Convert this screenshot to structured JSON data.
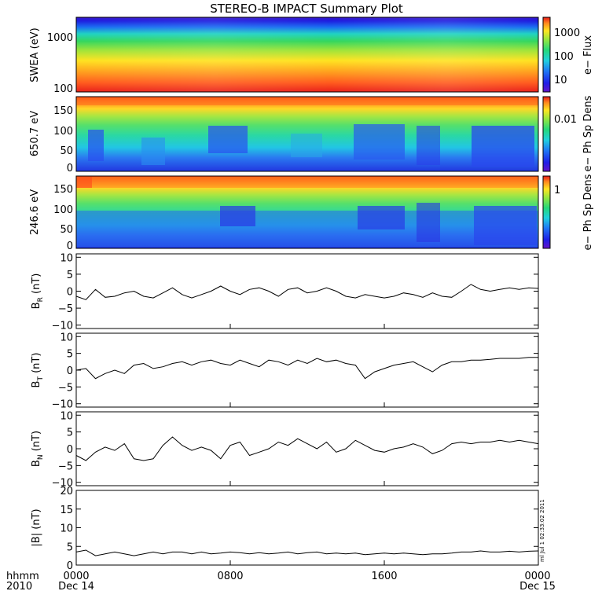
{
  "title": "STEREO-B IMPACT Summary Plot",
  "stamp": "ml Jul 1 02:33:02 2011",
  "colors": {
    "line": "#000000",
    "axis": "#000000",
    "background": "#ffffff"
  },
  "chart_data": [
    {
      "type": "heatmap",
      "ylabel": "SWEA (eV)",
      "yscale": "log",
      "ylim": [
        90,
        2000
      ],
      "yticks": [
        "1000",
        "100"
      ],
      "colorbar": {
        "label": "e− Flux",
        "scale": "log",
        "ticks": [
          "1000",
          "100",
          "10"
        ]
      }
    },
    {
      "type": "heatmap",
      "ylabel": "650.7 eV",
      "ylim": [
        0,
        180
      ],
      "yticks": [
        "150",
        "100",
        "50",
        "0"
      ],
      "colorbar": {
        "label": "e− Ph Sp Dens",
        "scale": "log",
        "ticks": [
          "0.01"
        ]
      }
    },
    {
      "type": "heatmap",
      "ylabel": "246.6 eV",
      "ylim": [
        0,
        180
      ],
      "yticks": [
        "150",
        "100",
        "50",
        "0"
      ],
      "colorbar": {
        "label": "e− Ph Sp Dens",
        "scale": "log",
        "ticks": [
          "1"
        ]
      }
    },
    {
      "type": "line",
      "ylabel": "B",
      "ylabel_sub": "R",
      "ylabel_unit": "(nT)",
      "ylim": [
        -11,
        11
      ],
      "yticks": [
        "10",
        "5",
        "0",
        "−5",
        "−10"
      ],
      "x": [
        0,
        0.5,
        1,
        1.5,
        2,
        2.5,
        3,
        3.5,
        4,
        4.5,
        5,
        5.5,
        6,
        6.5,
        7,
        7.5,
        8,
        8.5,
        9,
        9.5,
        10,
        10.5,
        11,
        11.5,
        12,
        12.5,
        13,
        13.5,
        14,
        14.5,
        15,
        15.5,
        16,
        16.5,
        17,
        17.5,
        18,
        18.5,
        19,
        19.5,
        20,
        20.5,
        21,
        21.5,
        22,
        22.5,
        23,
        23.5,
        24
      ],
      "y": [
        -1.5,
        -2.5,
        0.5,
        -1.8,
        -1.5,
        -0.5,
        0,
        -1.5,
        -2,
        -0.5,
        1,
        -1,
        -2,
        -1,
        0,
        1.5,
        0,
        -1,
        0.5,
        1,
        0,
        -1.5,
        0.5,
        1,
        -0.5,
        0,
        1,
        0,
        -1.5,
        -2,
        -1,
        -1.5,
        -2,
        -1.5,
        -0.5,
        -1,
        -1.8,
        -0.5,
        -1.5,
        -1.8,
        0,
        2,
        0.5,
        0,
        0.5,
        1,
        0.5,
        1,
        0.8
      ]
    },
    {
      "type": "line",
      "ylabel": "B",
      "ylabel_sub": "T",
      "ylabel_unit": "(nT)",
      "ylim": [
        -11,
        11
      ],
      "yticks": [
        "10",
        "5",
        "0",
        "−5",
        "−10"
      ],
      "x": [
        0,
        0.5,
        1,
        1.5,
        2,
        2.5,
        3,
        3.5,
        4,
        4.5,
        5,
        5.5,
        6,
        6.5,
        7,
        7.5,
        8,
        8.5,
        9,
        9.5,
        10,
        10.5,
        11,
        11.5,
        12,
        12.5,
        13,
        13.5,
        14,
        14.5,
        15,
        15.5,
        16,
        16.5,
        17,
        17.5,
        18,
        18.5,
        19,
        19.5,
        20,
        20.5,
        21,
        21.5,
        22,
        22.5,
        23,
        23.5,
        24
      ],
      "y": [
        0,
        0.5,
        -2.5,
        -1,
        0,
        -1,
        1.5,
        2,
        0.5,
        1,
        2,
        2.5,
        1.5,
        2.5,
        3,
        2,
        1.5,
        3,
        2,
        1,
        3,
        2.5,
        1.5,
        3,
        2,
        3.5,
        2.5,
        3,
        2,
        1.5,
        -2.5,
        -0.5,
        0.5,
        1.5,
        2,
        2.5,
        1,
        -0.5,
        1.5,
        2.5,
        2.5,
        3,
        3,
        3.2,
        3.5,
        3.5,
        3.5,
        3.8,
        3.8
      ]
    },
    {
      "type": "line",
      "ylabel": "B",
      "ylabel_sub": "N",
      "ylabel_unit": "(nT)",
      "ylim": [
        -11,
        11
      ],
      "yticks": [
        "10",
        "5",
        "0",
        "−5",
        "−10"
      ],
      "x": [
        0,
        0.5,
        1,
        1.5,
        2,
        2.5,
        3,
        3.5,
        4,
        4.5,
        5,
        5.5,
        6,
        6.5,
        7,
        7.5,
        8,
        8.5,
        9,
        9.5,
        10,
        10.5,
        11,
        11.5,
        12,
        12.5,
        13,
        13.5,
        14,
        14.5,
        15,
        15.5,
        16,
        16.5,
        17,
        17.5,
        18,
        18.5,
        19,
        19.5,
        20,
        20.5,
        21,
        21.5,
        22,
        22.5,
        23,
        23.5,
        24
      ],
      "y": [
        -2,
        -3.5,
        -1,
        0.5,
        -0.5,
        1.5,
        -3,
        -3.5,
        -3,
        1,
        3.5,
        1,
        -0.5,
        0.5,
        -0.5,
        -3,
        1,
        2,
        -2,
        -1,
        0,
        2,
        1,
        3,
        1.5,
        0,
        2,
        -1,
        0,
        2.5,
        1,
        -0.5,
        -1,
        0,
        0.5,
        1.5,
        0.5,
        -1.5,
        -0.5,
        1.5,
        2,
        1.5,
        2,
        2,
        2.5,
        2,
        2.5,
        2,
        1.5
      ]
    },
    {
      "type": "line",
      "ylabel": "|B|",
      "ylabel_unit": "(nT)",
      "ylim": [
        0,
        20
      ],
      "yticks": [
        "20",
        "15",
        "10",
        "5",
        "0"
      ],
      "x": [
        0,
        0.5,
        1,
        1.5,
        2,
        2.5,
        3,
        3.5,
        4,
        4.5,
        5,
        5.5,
        6,
        6.5,
        7,
        7.5,
        8,
        8.5,
        9,
        9.5,
        10,
        10.5,
        11,
        11.5,
        12,
        12.5,
        13,
        13.5,
        14,
        14.5,
        15,
        15.5,
        16,
        16.5,
        17,
        17.5,
        18,
        18.5,
        19,
        19.5,
        20,
        20.5,
        21,
        21.5,
        22,
        22.5,
        23,
        23.5,
        24
      ],
      "y": [
        3.5,
        4,
        2.5,
        3,
        3.5,
        3,
        2.5,
        3,
        3.5,
        3,
        3.5,
        3.5,
        3,
        3.5,
        3,
        3.2,
        3.5,
        3.3,
        3,
        3.3,
        3,
        3.2,
        3.5,
        3,
        3.3,
        3.5,
        3,
        3.2,
        3,
        3.2,
        2.8,
        3,
        3.2,
        3,
        3.2,
        3,
        2.8,
        3,
        3,
        3.2,
        3.5,
        3.5,
        3.8,
        3.5,
        3.5,
        3.7,
        3.5,
        3.7,
        3.8
      ]
    }
  ],
  "xaxis": {
    "row_labels": [
      "hhmm",
      "2010"
    ],
    "ticks": [
      {
        "hour": 0,
        "time": "0000",
        "date": "Dec 14"
      },
      {
        "hour": 8,
        "time": "0800",
        "date": ""
      },
      {
        "hour": 16,
        "time": "1600",
        "date": ""
      },
      {
        "hour": 24,
        "time": "0000",
        "date": "Dec 15"
      }
    ],
    "xlim": [
      0,
      24
    ]
  }
}
